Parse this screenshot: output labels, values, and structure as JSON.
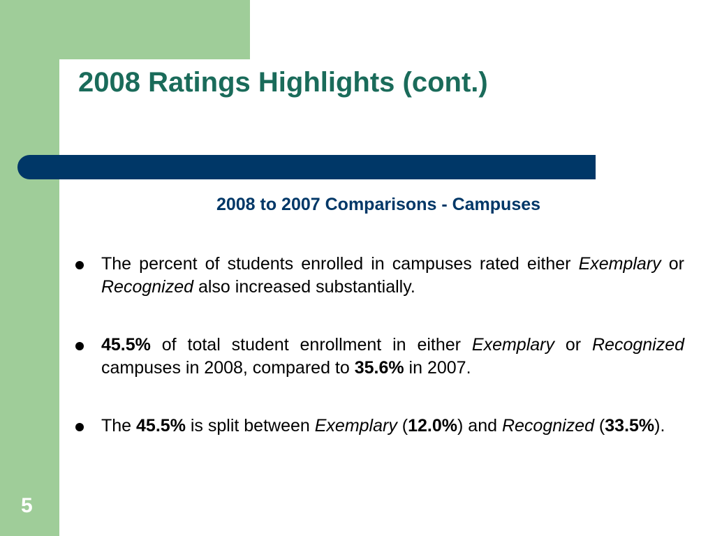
{
  "slide": {
    "title": "2008 Ratings Highlights (cont.)",
    "subtitle": "2008 to 2007 Comparisons - Campuses",
    "page_number": "5",
    "colors": {
      "accent_green": "#9fcd99",
      "title_teal": "#1a6b5a",
      "navy": "#003767"
    }
  },
  "bullets": [
    {
      "t1": "The percent of students enrolled in campuses rated either ",
      "t2": "Exemplary",
      "t3": " or ",
      "t4": "Recognized",
      "t5": " also increased substantially."
    },
    {
      "t1": "45.5%",
      "t2": " of total student enrollment in either ",
      "t3": "Exemplary",
      "t4": " or ",
      "t5": "Recognized",
      "t6": " campuses in 2008, compared to ",
      "t7": "35.6%",
      "t8": " in 2007."
    },
    {
      "t1": "The ",
      "t2": "45.5%",
      "t3": " is split between ",
      "t4": "Exemplary",
      "t5": " (",
      "t6": "12.0%",
      "t7": ") and ",
      "t8": "Recognized",
      "t9": " (",
      "t10": "33.5%",
      "t11": ")."
    }
  ]
}
